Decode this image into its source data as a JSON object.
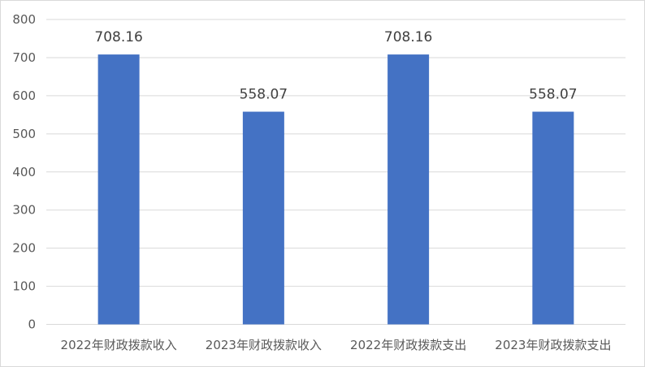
{
  "chart_data": {
    "type": "bar",
    "categories": [
      "2022年财政拨款收入",
      "2023年财政拨款收入",
      "2022年财政拨款支出",
      "2023年财政拨款支出"
    ],
    "values": [
      708.16,
      558.07,
      708.16,
      558.07
    ],
    "data_labels": [
      "708.16",
      "558.07",
      "708.16",
      "558.07"
    ],
    "title": "",
    "xlabel": "",
    "ylabel": "",
    "ylim": [
      0,
      800
    ],
    "yticks": [
      "0",
      "100",
      "200",
      "300",
      "400",
      "500",
      "600",
      "700",
      "800"
    ],
    "grid": true,
    "legend": "none",
    "bar_color": "#4472c4"
  }
}
